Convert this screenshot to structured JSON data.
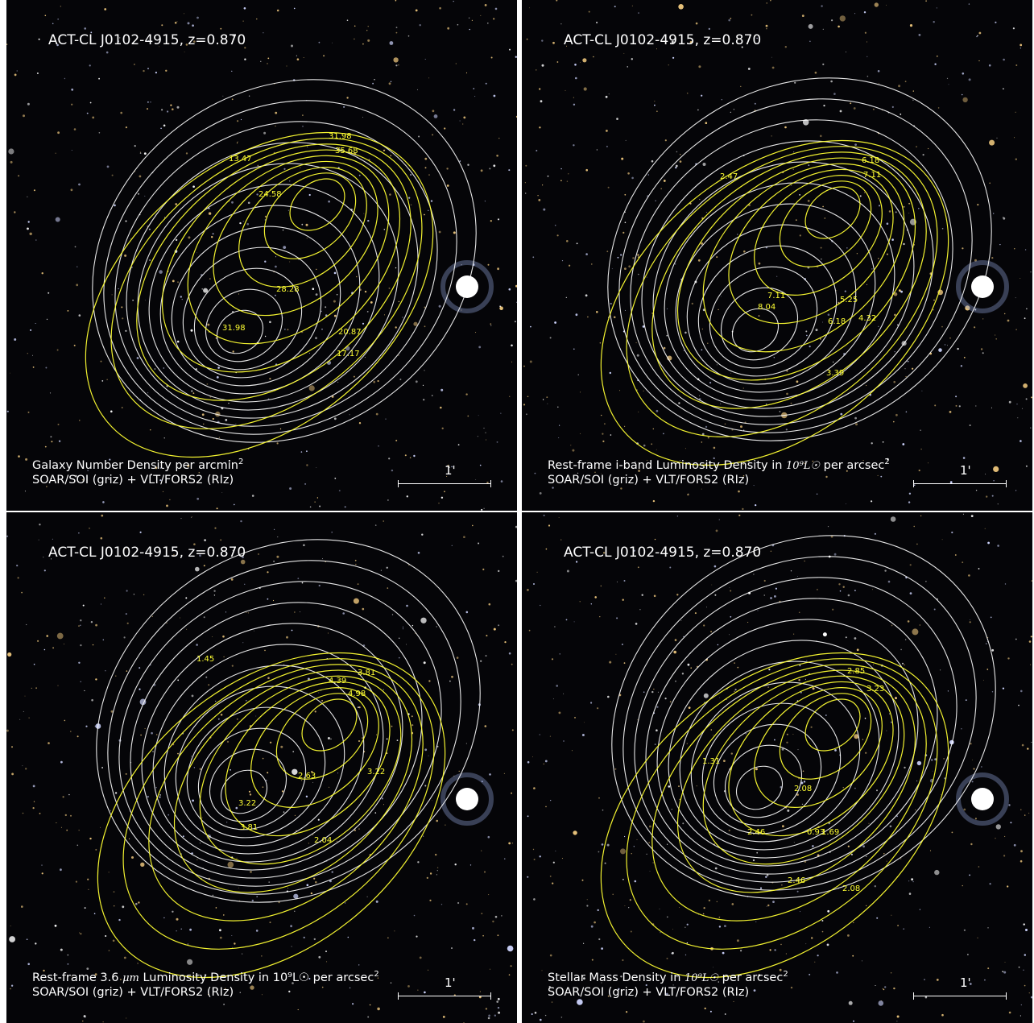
{
  "panels": [
    {
      "title": "ACT-CL J0102-4915,  z=0.870",
      "caption_main": "Galaxy Number Density per arcmin",
      "caption_sup": "2",
      "caption_math": "",
      "caption_tail": "",
      "caption_line2": "SOAR/SOI (griz) + VLT/FORS2 (RIz)",
      "scale_label": "1'",
      "contour_labels": [
        "31.98",
        "35.68",
        "13.47",
        "24.58",
        "28.28",
        "31.98",
        "20.87",
        "17.17"
      ]
    },
    {
      "title": "ACT-CL J0102-4915,  z=0.870",
      "caption_main": "Rest-frame i-band Luminosity Density in ",
      "caption_math": "10⁹L☉",
      "caption_tail": " per arcsec",
      "caption_sup": "2",
      "caption_line2": "SOAR/SOI (griz) + VLT/FORS2 (RIz)",
      "scale_label": "1'",
      "contour_labels": [
        "6.18",
        "7.11",
        "2.47",
        "7.11",
        "8.04",
        "6.18",
        "5.25",
        "4.32",
        "3.39"
      ]
    },
    {
      "title": "ACT-CL J0102-4915,  z=0.870",
      "caption_main": "Rest-frame 3.6 ",
      "caption_math": "μm",
      "caption_tail": " Luminosity Density in 10⁹L☉ per arcsec",
      "caption_sup": "2",
      "caption_line2": "SOAR/SOI (griz) + VLT/FORS2 (RIz)",
      "scale_label": "1'",
      "contour_labels": [
        "4.39",
        "3.81",
        "4.98",
        "1.45",
        "3.22",
        "3.22",
        "3.81",
        "2.63",
        "2.04"
      ]
    },
    {
      "title": "ACT-CL J0102-4915,  z=0.870",
      "caption_main": "Stellar Mass Density in ",
      "caption_math": "10⁹L☉",
      "caption_tail": " per arcsec",
      "caption_sup": "2",
      "caption_line2": "SOAR/SOI (griz) + VLT/FORS2 (RIz)",
      "scale_label": "1'",
      "contour_labels": [
        "2.85",
        "3.23",
        "1.31",
        "2.08",
        "2.46",
        "1.69",
        "2.46",
        "2.08",
        "0.93"
      ]
    }
  ],
  "colors": {
    "background_sky": "#050508",
    "white_contours": "#ffffff",
    "yellow_contours": "#ffff33"
  }
}
